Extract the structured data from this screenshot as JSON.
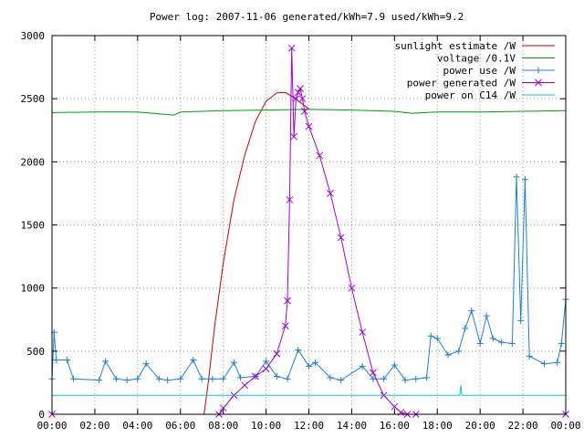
{
  "chart_data": {
    "type": "line",
    "title": "Power log: 2007-11-06 generated/kWh=7.9 used/kWh=9.2",
    "xlabel": "",
    "ylabel": "",
    "x_ticks": [
      "00:00",
      "02:00",
      "04:00",
      "06:00",
      "08:00",
      "10:00",
      "12:00",
      "14:00",
      "16:00",
      "18:00",
      "20:00",
      "22:00",
      "00:00"
    ],
    "xlim_hours": [
      0,
      24
    ],
    "ylim": [
      0,
      3000
    ],
    "y_ticks": [
      0,
      500,
      1000,
      1500,
      2000,
      2500,
      3000
    ],
    "grid": true,
    "legend_position": "top-right",
    "series": [
      {
        "name": "sunlight estimate /W",
        "color": "#cc0000",
        "marker": "none",
        "x": [
          7.1,
          7.3,
          7.6,
          8.0,
          8.5,
          9.0,
          9.5,
          10.0,
          10.5,
          10.9,
          11.2,
          11.6,
          12.0
        ],
        "y": [
          0,
          250,
          700,
          1200,
          1700,
          2050,
          2320,
          2480,
          2545,
          2550,
          2520,
          2470,
          2420
        ]
      },
      {
        "name": "voltage /0.1V",
        "color": "#00a000",
        "marker": "none",
        "x": [
          0,
          2,
          4,
          5.7,
          6,
          8,
          10,
          12,
          14,
          16,
          16.8,
          18,
          20,
          22,
          24
        ],
        "y": [
          2390,
          2395,
          2395,
          2370,
          2395,
          2405,
          2410,
          2415,
          2410,
          2400,
          2385,
          2395,
          2395,
          2400,
          2405
        ]
      },
      {
        "name": "power use /W",
        "color": "#1e7fd8",
        "marker": "plus",
        "x": [
          0.0,
          0.1,
          0.2,
          0.7,
          1.0,
          2.2,
          2.5,
          3.0,
          3.5,
          4.0,
          4.4,
          5.0,
          5.4,
          6.0,
          6.6,
          7.0,
          7.5,
          8.0,
          8.5,
          8.8,
          9.5,
          10.0,
          10.5,
          11.0,
          11.5,
          12.0,
          12.3,
          13.0,
          13.5,
          14.5,
          15.0,
          15.5,
          16.0,
          16.5,
          17.0,
          17.5,
          17.7,
          18.0,
          18.5,
          19.0,
          19.3,
          19.6,
          20.0,
          20.3,
          20.6,
          21.0,
          21.5,
          21.7,
          21.9,
          22.1,
          22.3,
          23.0,
          23.6,
          23.8,
          24.0
        ],
        "y": [
          280,
          650,
          430,
          430,
          280,
          270,
          420,
          280,
          270,
          280,
          400,
          280,
          270,
          280,
          430,
          280,
          280,
          280,
          410,
          290,
          300,
          420,
          300,
          280,
          510,
          380,
          410,
          290,
          270,
          380,
          280,
          280,
          390,
          270,
          280,
          290,
          620,
          600,
          470,
          500,
          680,
          820,
          560,
          780,
          600,
          570,
          560,
          1880,
          740,
          1860,
          460,
          400,
          410,
          560,
          910
        ]
      },
      {
        "name": "power generated /W",
        "color": "#a000d8",
        "marker": "cross",
        "x": [
          0,
          7.8,
          8.0,
          8.5,
          9.0,
          9.5,
          10.0,
          10.5,
          10.9,
          11.0,
          11.1,
          11.2,
          11.3,
          11.4,
          11.5,
          11.6,
          11.7,
          11.8,
          12.0,
          12.5,
          13.0,
          13.5,
          14.0,
          14.5,
          15.0,
          15.5,
          16.0,
          16.3,
          16.6,
          17.0,
          24
        ],
        "y": [
          0,
          0,
          50,
          150,
          230,
          300,
          360,
          480,
          700,
          900,
          1700,
          2900,
          2200,
          2500,
          2550,
          2580,
          2500,
          2400,
          2280,
          2050,
          1750,
          1400,
          1000,
          650,
          330,
          150,
          60,
          15,
          0,
          0,
          0
        ]
      },
      {
        "name": "power on C14 /W",
        "color": "#00c8c8",
        "marker": "none",
        "x": [
          0,
          4,
          8,
          12,
          16,
          19.05,
          19.1,
          19.15,
          20,
          24
        ],
        "y": [
          150,
          150,
          150,
          150,
          150,
          150,
          230,
          150,
          150,
          150
        ]
      }
    ]
  }
}
